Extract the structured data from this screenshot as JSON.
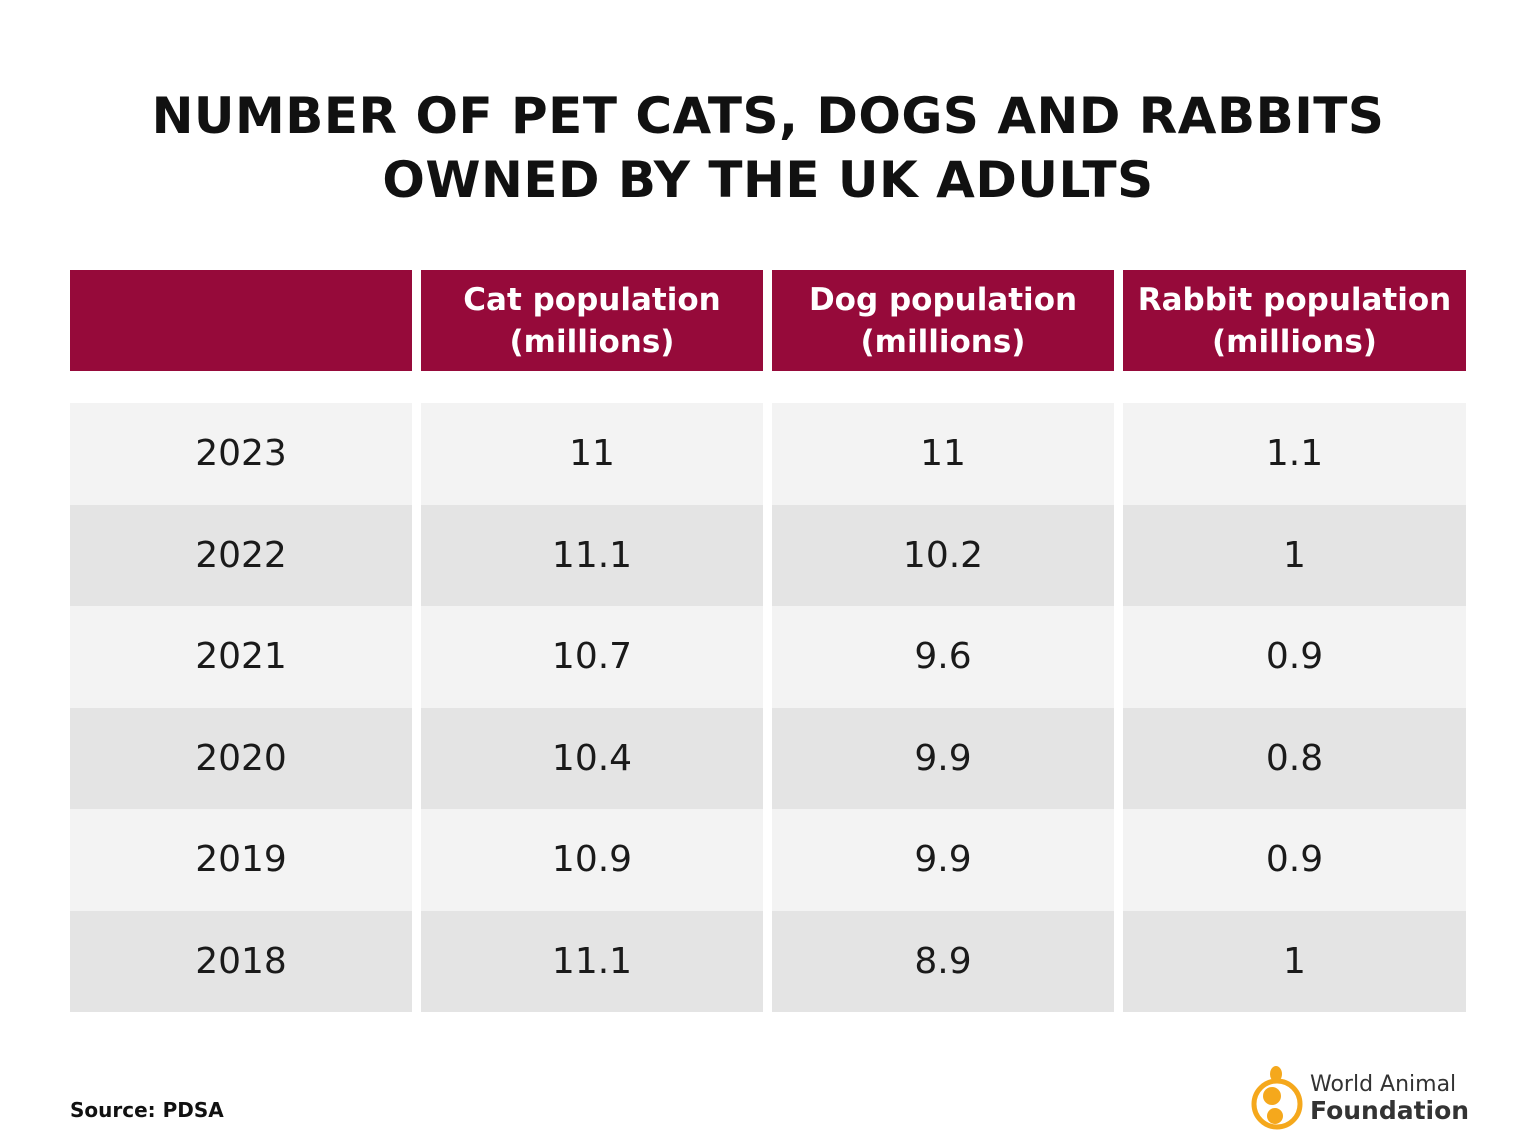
{
  "title": [
    "NUMBER OF PET CATS, DOGS AND RABBITS",
    "OWNED BY THE UK ADULTS"
  ],
  "colors": {
    "header": "#960a3a",
    "row_light": "#f3f3f3",
    "row_dark": "#e4e4e4",
    "logo": "#f5a81c"
  },
  "chart_data": {
    "type": "table",
    "title": "NUMBER OF PET CATS, DOGS AND RABBITS OWNED BY THE UK ADULTS",
    "columns": [
      {
        "label": "",
        "sub": ""
      },
      {
        "label": "Cat population",
        "sub": "(millions)"
      },
      {
        "label": "Dog population",
        "sub": "(millions)"
      },
      {
        "label": "Rabbit population",
        "sub": "(millions)"
      }
    ],
    "rows": [
      [
        "2023",
        "11",
        "11",
        "1.1"
      ],
      [
        "2022",
        "11.1",
        "10.2",
        "1"
      ],
      [
        "2021",
        "10.7",
        "9.6",
        "0.9"
      ],
      [
        "2020",
        "10.4",
        "9.9",
        "0.8"
      ],
      [
        "2019",
        "10.9",
        "9.9",
        "0.9"
      ],
      [
        "2018",
        "11.1",
        "8.9",
        "1"
      ]
    ]
  },
  "source": "Source: PDSA",
  "logo": {
    "line1": "World Animal",
    "line2": "Foundation",
    "icon": "animal-circle-logo-icon"
  }
}
